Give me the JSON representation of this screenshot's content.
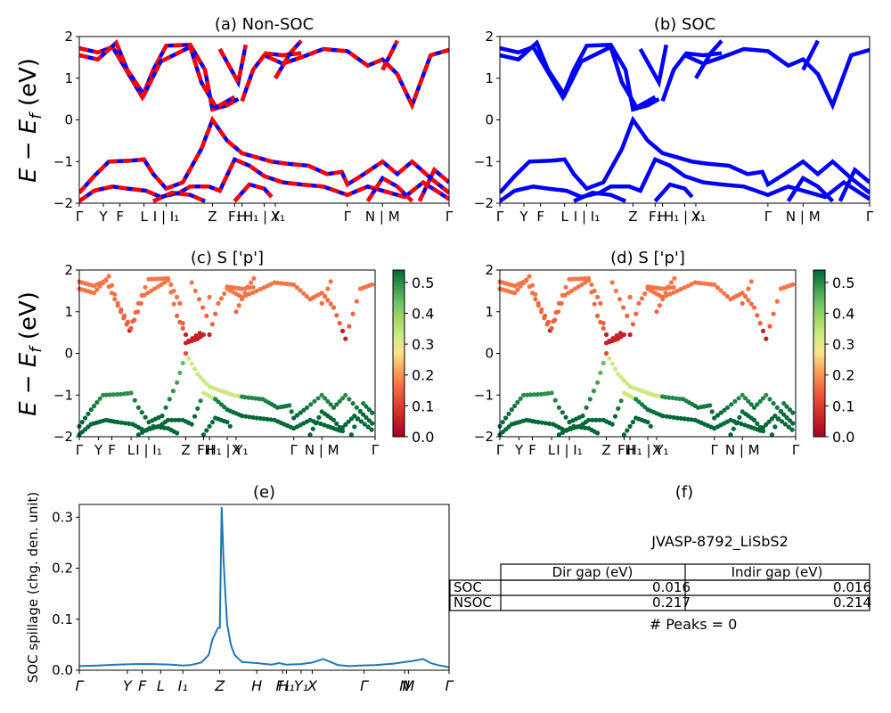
{
  "figure": {
    "ylabel_main": "E − E",
    "ylabel_main_sub": "f",
    "ylabel_main_unit": " (eV)",
    "table_id": "JVASP-8792_LiSbS2",
    "table_header": [
      "",
      "Dir gap (eV)",
      "Indir gap (eV)"
    ],
    "table_rows": [
      [
        "SOC",
        "0.016",
        "0.016"
      ],
      [
        "NSOC",
        "0.217",
        "0.214"
      ]
    ],
    "peaks_text": "# Peaks = 0"
  },
  "chart_data": [
    {
      "panel": "a",
      "type": "line",
      "title": "(a) Non-SOC",
      "ylim": [
        -2,
        2
      ],
      "yticks": [
        "2",
        "1",
        "0",
        "−1",
        "−2"
      ],
      "xticks": [
        "Γ",
        "Y",
        "F",
        "L",
        "I | I₁",
        "Z",
        "F₁",
        "H",
        "H₁ | Y₁",
        "X",
        "Γ",
        "N | M",
        "Γ"
      ],
      "colors": {
        "non_soc": "#ff0000",
        "soc": "#0000ff"
      },
      "bands": {
        "conduction_min_eV": 0.22,
        "valence_max_eV": 0.0,
        "description_values": [
          {
            "x": 0.0,
            "y": 1.72
          },
          {
            "x": 0.09,
            "y": 1.58
          },
          {
            "x": 0.18,
            "y": 0.55
          },
          {
            "x": 0.36,
            "y": 0.23
          },
          {
            "x": 0.5,
            "y": 0.55
          },
          {
            "x": 0.65,
            "y": 1.55
          },
          {
            "x": 0.91,
            "y": 0.35
          },
          {
            "x": 1.0,
            "y": 1.7
          }
        ]
      }
    },
    {
      "panel": "b",
      "type": "line",
      "title": "(b) SOC",
      "ylim": [
        -2,
        2
      ],
      "yticks": [
        "2",
        "1",
        "0",
        "−1",
        "−2"
      ],
      "xticks": [
        "Γ",
        "Y",
        "F",
        "L",
        "I | I₁",
        "Z",
        "F₁",
        "H",
        "H₁ | Y₁",
        "X",
        "Γ",
        "N | M",
        "Γ"
      ],
      "colors": {
        "soc": "#0000ff"
      }
    },
    {
      "panel": "c",
      "type": "scatter",
      "title": "(c)  S ['p']",
      "ylim": [
        -2,
        2
      ],
      "yticks": [
        "2",
        "1",
        "0",
        "−1",
        "−2"
      ],
      "xticks": [
        "Γ",
        "Y",
        "F",
        "L",
        "I | I₁",
        "Z",
        "F₁",
        "H",
        "H₁ | Y₁",
        "X",
        "Γ",
        "N | M",
        "Γ"
      ],
      "colorbar": {
        "min": 0.0,
        "max": 0.54,
        "ticks": [
          "0.5",
          "0.4",
          "0.3",
          "0.2",
          "0.1",
          "0.0"
        ],
        "colormap": "RdYlGn"
      }
    },
    {
      "panel": "d",
      "type": "scatter",
      "title": "(d) S ['p']",
      "ylim": [
        -2,
        2
      ],
      "yticks": [
        "2",
        "1",
        "0",
        "−1",
        "−2"
      ],
      "xticks": [
        "Γ",
        "Y",
        "F",
        "L",
        "I | I₁",
        "Z",
        "F₁",
        "H",
        "H₁ | Y₁",
        "X",
        "Γ",
        "N | M",
        "Γ"
      ],
      "colorbar": {
        "min": 0.0,
        "max": 0.54,
        "ticks": [
          "0.5",
          "0.4",
          "0.3",
          "0.2",
          "0.1",
          "0.0"
        ],
        "colormap": "RdYlGn"
      }
    },
    {
      "panel": "e",
      "type": "line",
      "title": "(e)",
      "ylabel": "SOC spillage (chg. den. unit)",
      "ylim": [
        0,
        0.325
      ],
      "yticks": [
        "0.3",
        "0.2",
        "0.1",
        "0.0"
      ],
      "xticks": [
        "Γ",
        "Y",
        "F",
        "L",
        "I₁",
        "Z",
        "H",
        "F₁",
        "H₁",
        "Y₁",
        "X",
        "Γ",
        "N",
        "M",
        "Γ"
      ],
      "color": "#1f77b4",
      "x": [
        0,
        0.05,
        0.1,
        0.15,
        0.2,
        0.25,
        0.28,
        0.3,
        0.33,
        0.35,
        0.36,
        0.375,
        0.38,
        0.385,
        0.39,
        0.395,
        0.4,
        0.41,
        0.42,
        0.44,
        0.48,
        0.52,
        0.54,
        0.56,
        0.6,
        0.63,
        0.66,
        0.7,
        0.73,
        0.76,
        0.8,
        0.85,
        0.88,
        0.9,
        0.93,
        0.95,
        0.97,
        1.0
      ],
      "y": [
        0.008,
        0.009,
        0.011,
        0.012,
        0.012,
        0.011,
        0.009,
        0.01,
        0.015,
        0.03,
        0.06,
        0.083,
        0.083,
        0.32,
        0.22,
        0.15,
        0.09,
        0.05,
        0.03,
        0.016,
        0.014,
        0.011,
        0.014,
        0.011,
        0.012,
        0.015,
        0.022,
        0.01,
        0.008,
        0.009,
        0.01,
        0.013,
        0.016,
        0.018,
        0.022,
        0.014,
        0.01,
        0.006
      ]
    }
  ]
}
